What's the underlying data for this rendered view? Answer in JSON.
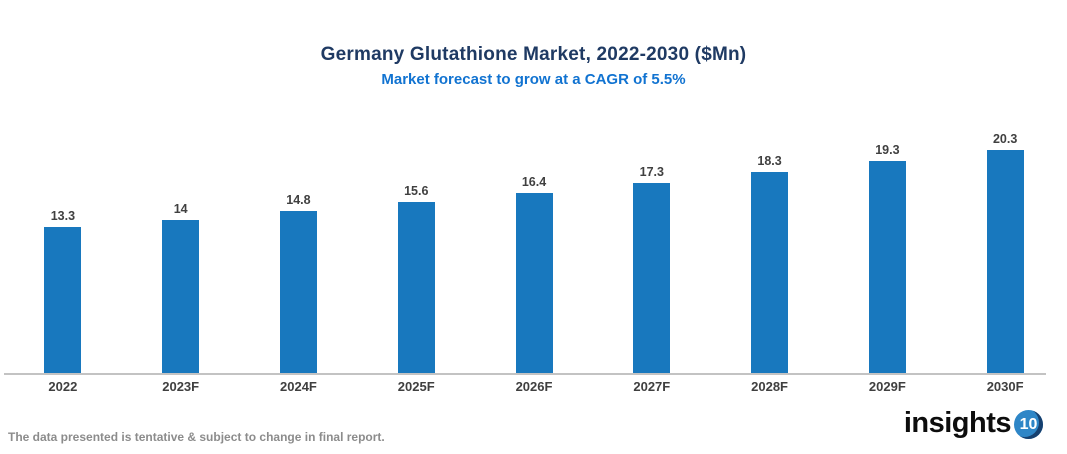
{
  "header": {
    "title": "Germany Glutathione Market, 2022-2030 ($Mn)",
    "subtitle": "Market forecast to grow at a CAGR of 5.5%"
  },
  "chart_data": {
    "type": "bar",
    "categories": [
      "2022",
      "2023F",
      "2024F",
      "2025F",
      "2026F",
      "2027F",
      "2028F",
      "2029F",
      "2030F"
    ],
    "values": [
      13.3,
      14,
      14.8,
      15.6,
      16.4,
      17.3,
      18.3,
      19.3,
      20.3
    ],
    "title": "Germany Glutathione Market, 2022-2030 ($Mn)",
    "subtitle": "Market forecast to grow at a CAGR of 5.5%",
    "xlabel": "",
    "ylabel": "",
    "ylim": [
      0,
      22
    ],
    "grid": false,
    "legend": false,
    "value_labels_shown": true,
    "bar_color": "#1878BE",
    "value_label_color": "#404040",
    "category_label_color": "#3F3F3F"
  },
  "footer": {
    "note": "The data presented is tentative & subject to change in final report."
  },
  "logo": {
    "text": "insights",
    "badge": "10",
    "text_color": "#0D0D0D",
    "badge_color": "#2E86C7",
    "badge_accent_color": "#16406F"
  },
  "colors": {
    "title": "#1F3A63",
    "subtitle": "#1173D1",
    "axis_line": "#C3C3C3",
    "footer_text": "#8C8C8C",
    "background": "#FFFFFF"
  }
}
